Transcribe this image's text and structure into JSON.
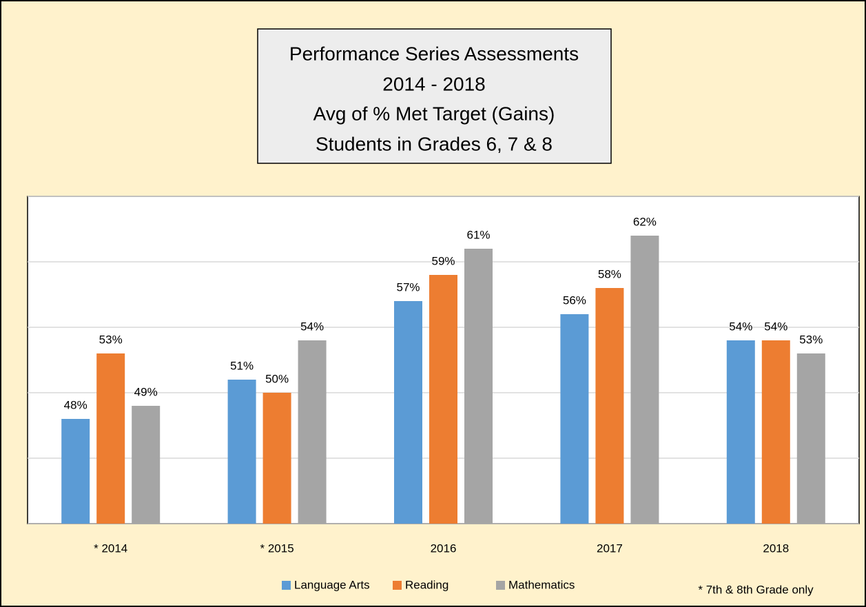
{
  "chart_data": {
    "type": "bar",
    "title": [
      "Performance Series Assessments",
      "2014 - 2018",
      "Avg of % Met Target (Gains)",
      "Students in Grades 6, 7 & 8"
    ],
    "categories": [
      "* 2014",
      "* 2015",
      "2016",
      "2017",
      "2018"
    ],
    "series": [
      {
        "name": "Language Arts",
        "color": "#5b9bd5",
        "values": [
          48,
          51,
          57,
          56,
          54
        ],
        "value_labels": [
          "48%",
          "51%",
          "57%",
          "56%",
          "54%"
        ]
      },
      {
        "name": "Reading",
        "color": "#ed7d31",
        "values": [
          53,
          50,
          59,
          58,
          54
        ],
        "value_labels": [
          "53%",
          "50%",
          "59%",
          "58%",
          "54%"
        ]
      },
      {
        "name": "Mathematics",
        "color": "#a5a5a5",
        "values": [
          49,
          54,
          61,
          62,
          53
        ],
        "value_labels": [
          "49%",
          "54%",
          "61%",
          "62%",
          "53%"
        ]
      }
    ],
    "ylim": [
      40,
      65
    ],
    "yticks": [
      40,
      45,
      50,
      55,
      60,
      65
    ],
    "grid": true,
    "annotation": "* 7th & 8th Grade only"
  }
}
